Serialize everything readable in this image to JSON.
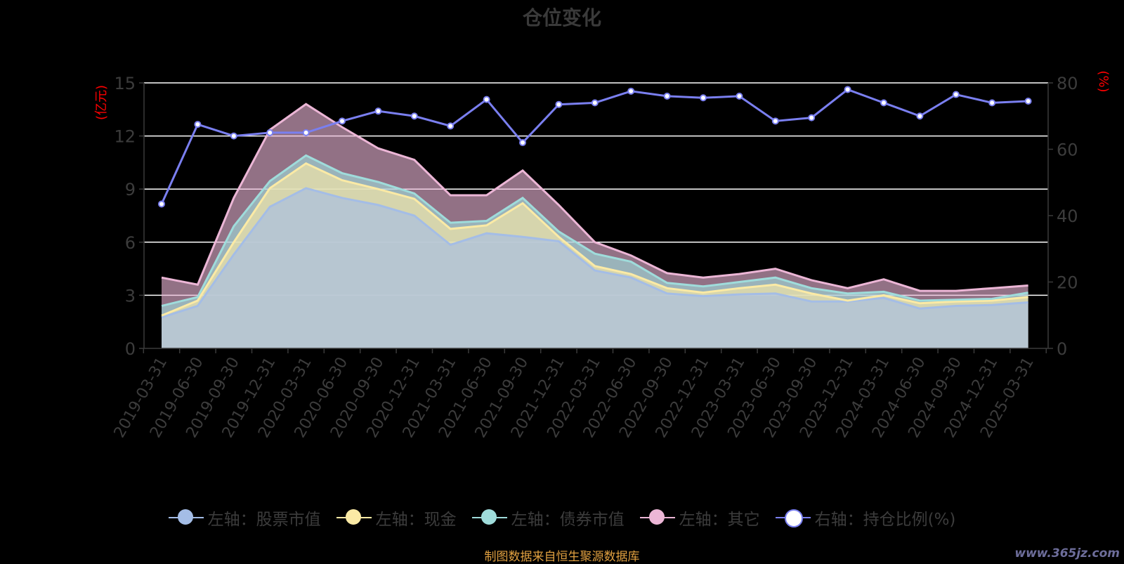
{
  "title": "仓位变化",
  "source_note": "制图数据来自恒生聚源数据库",
  "watermark": "www.365jz.com",
  "colors": {
    "stock": "#a4bde6",
    "cash": "#fbeaa5",
    "bond": "#9fdcdb",
    "other": "#ecb6d6",
    "ratio": "#7a7ff0",
    "axis_left_unit": "#ff0000",
    "axis_right_unit": "#ff0000"
  },
  "chart_data": {
    "type": "area",
    "categories": [
      "2019-03-31",
      "2019-06-30",
      "2019-09-30",
      "2019-12-31",
      "2020-03-31",
      "2020-06-30",
      "2020-09-30",
      "2020-12-31",
      "2021-03-31",
      "2021-06-30",
      "2021-09-30",
      "2021-12-31",
      "2022-03-31",
      "2022-06-30",
      "2022-09-30",
      "2022-12-31",
      "2023-03-31",
      "2023-06-30",
      "2023-09-30",
      "2023-12-31",
      "2024-03-31",
      "2024-06-30",
      "2024-09-30",
      "2024-12-31",
      "2025-03-31"
    ],
    "left_axis": {
      "unit": "(亿元)",
      "ylim": [
        0,
        15
      ],
      "ticks": [
        0,
        3,
        6,
        9,
        12,
        15
      ]
    },
    "right_axis": {
      "unit": "(%)",
      "ylim": [
        0,
        80
      ],
      "ticks": [
        0,
        20,
        40,
        60,
        80
      ]
    },
    "series": [
      {
        "name": "左轴：股票市值",
        "axis": "left",
        "values": [
          1.75,
          2.4,
          5.3,
          8.0,
          9.05,
          8.5,
          8.1,
          7.5,
          5.85,
          6.5,
          6.3,
          6.05,
          4.4,
          4.0,
          3.1,
          2.95,
          3.05,
          3.1,
          2.65,
          2.65,
          2.85,
          2.25,
          2.4,
          2.45,
          2.6
        ]
      },
      {
        "name": "左轴：现金",
        "axis": "left",
        "values": [
          0.1,
          0.3,
          0.7,
          1.05,
          1.4,
          1.0,
          0.9,
          0.95,
          0.9,
          0.45,
          1.9,
          0.25,
          0.25,
          0.2,
          0.3,
          0.2,
          0.35,
          0.5,
          0.45,
          0.05,
          0.15,
          0.3,
          0.25,
          0.25,
          0.3
        ]
      },
      {
        "name": "左轴：债券市值",
        "axis": "left",
        "values": [
          0.55,
          0.2,
          0.9,
          0.4,
          0.45,
          0.4,
          0.4,
          0.3,
          0.35,
          0.25,
          0.3,
          0.3,
          0.7,
          0.7,
          0.3,
          0.35,
          0.35,
          0.4,
          0.3,
          0.4,
          0.2,
          0.15,
          0.1,
          0.1,
          0.25
        ]
      },
      {
        "name": "左轴：其它",
        "axis": "left",
        "values": [
          1.6,
          0.7,
          1.6,
          2.9,
          2.9,
          2.6,
          1.9,
          1.9,
          1.55,
          1.45,
          1.55,
          1.5,
          0.65,
          0.35,
          0.55,
          0.5,
          0.45,
          0.5,
          0.45,
          0.3,
          0.7,
          0.55,
          0.5,
          0.6,
          0.4
        ]
      },
      {
        "name": "右轴：持仓比例(%)",
        "axis": "right",
        "type": "line",
        "values": [
          43.5,
          67.5,
          64.0,
          65.0,
          65.0,
          68.5,
          71.5,
          70.0,
          67.0,
          75.0,
          62.0,
          73.5,
          74.0,
          77.5,
          76.0,
          75.5,
          76.0,
          68.5,
          69.5,
          78.0,
          74.0,
          70.0,
          76.5,
          74.0,
          74.5
        ]
      }
    ],
    "grid": true,
    "legend_position": "bottom"
  }
}
